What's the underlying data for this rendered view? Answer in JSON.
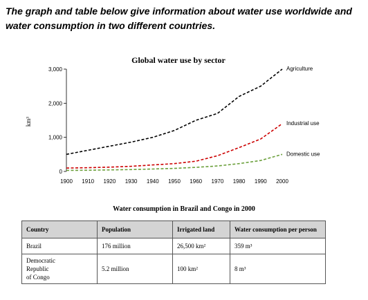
{
  "intro": "The graph and table below give information about water use worldwide and water consumption in two different countries.",
  "chart_data": {
    "type": "line",
    "title": "Global water use by sector",
    "xlabel": "",
    "ylabel": "km³",
    "xlim": [
      1900,
      2000
    ],
    "ylim": [
      0,
      3000
    ],
    "x_ticks": [
      1900,
      1910,
      1920,
      1930,
      1940,
      1950,
      1960,
      1970,
      1980,
      1990,
      2000
    ],
    "y_ticks": [
      0,
      1000,
      2000,
      3000
    ],
    "y_tick_labels": [
      "0",
      "1,000",
      "2,000",
      "3,000"
    ],
    "grid": false,
    "x": [
      1900,
      1910,
      1920,
      1930,
      1940,
      1950,
      1960,
      1970,
      1980,
      1990,
      2000
    ],
    "series": [
      {
        "name": "Agriculture",
        "color": "#000000",
        "values": [
          500,
          620,
          740,
          860,
          1000,
          1200,
          1500,
          1700,
          2200,
          2500,
          3000
        ]
      },
      {
        "name": "Industrial use",
        "color": "#cc0000",
        "values": [
          100,
          110,
          125,
          150,
          190,
          230,
          300,
          460,
          700,
          950,
          1400
        ]
      },
      {
        "name": "Domestic use",
        "color": "#6a9f3a",
        "values": [
          30,
          35,
          45,
          55,
          70,
          90,
          120,
          160,
          230,
          320,
          500
        ]
      }
    ]
  },
  "table": {
    "title": "Water consumption in Brazil and Congo in 2000",
    "headers": [
      "Country",
      "Population",
      "Irrigated land",
      "Water consumption per person"
    ],
    "rows": [
      [
        "Brazil",
        "176 million",
        "26,500 km²",
        "359 m³"
      ],
      [
        "Democratic\nRepublic\nof Congo",
        "5.2 million",
        "100 km²",
        "8 m³"
      ]
    ]
  }
}
